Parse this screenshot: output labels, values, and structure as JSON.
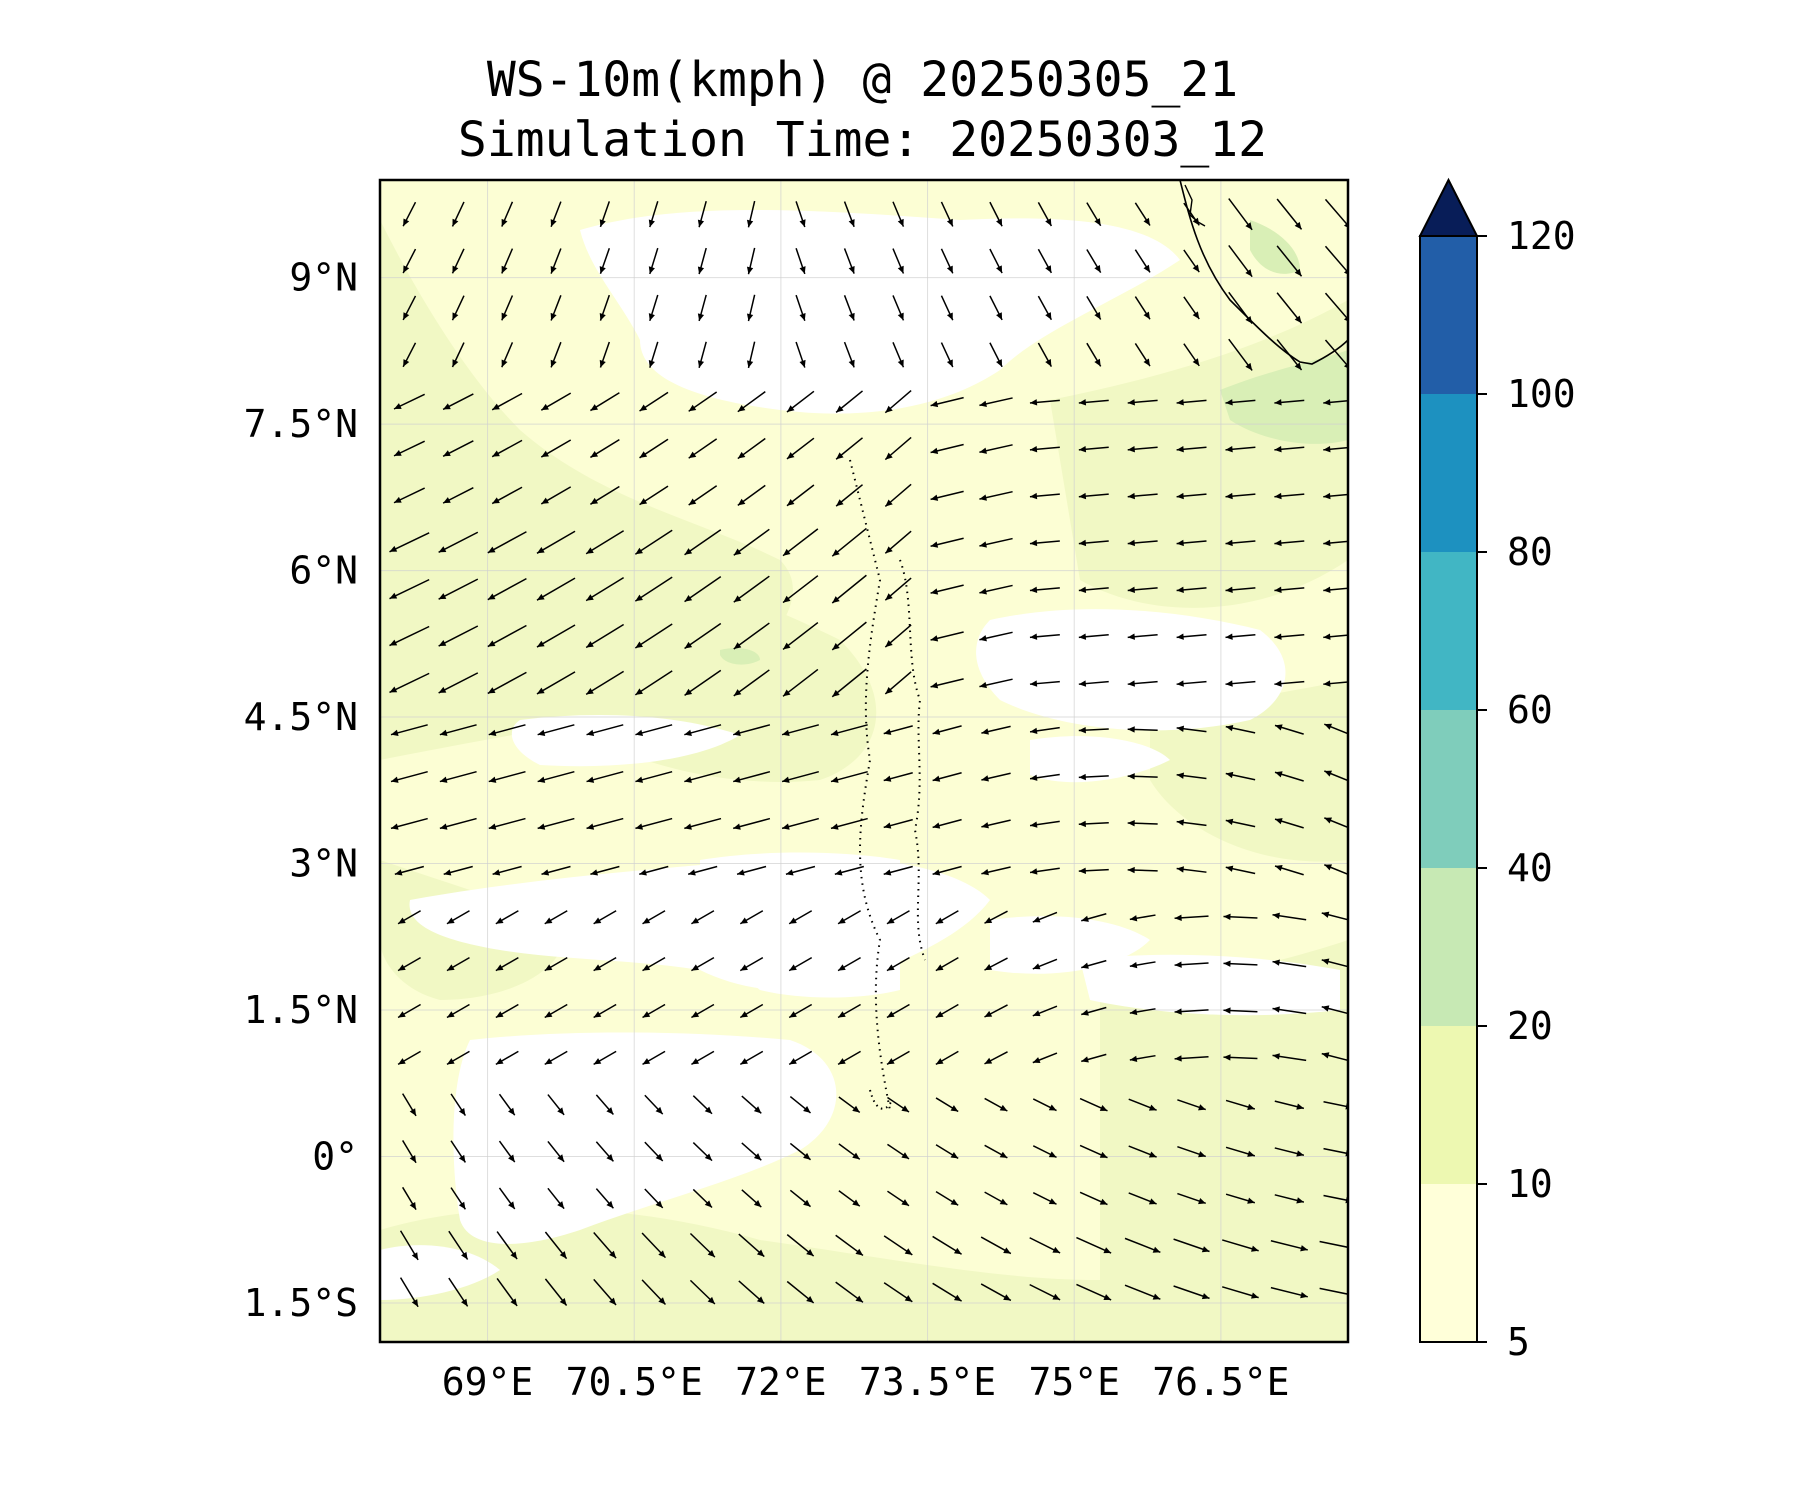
{
  "title": {
    "line1": "WS-10m(kmph) @ 20250305_21",
    "line2": "Simulation Time: 20250303_12"
  },
  "map": {
    "lon_range": [
      67.9,
      77.8
    ],
    "lat_range": [
      -1.9,
      10.0
    ],
    "lon_ticks": [
      {
        "value": 69.0,
        "label": "69°E"
      },
      {
        "value": 70.5,
        "label": "70.5°E"
      },
      {
        "value": 72.0,
        "label": "72°E"
      },
      {
        "value": 73.5,
        "label": "73.5°E"
      },
      {
        "value": 75.0,
        "label": "75°E"
      },
      {
        "value": 76.5,
        "label": "76.5°E"
      }
    ],
    "lat_ticks": [
      {
        "value": 9.0,
        "label": "9°N"
      },
      {
        "value": 7.5,
        "label": "7.5°N"
      },
      {
        "value": 6.0,
        "label": "6°N"
      },
      {
        "value": 4.5,
        "label": "4.5°N"
      },
      {
        "value": 3.0,
        "label": "3°N"
      },
      {
        "value": 1.5,
        "label": "1.5°N"
      },
      {
        "value": 0.0,
        "label": "0°"
      },
      {
        "value": -1.5,
        "label": "1.5°S"
      }
    ],
    "field_colors": {
      "lt5": "#ffffff",
      "5_10": "#fcfed4",
      "10_20": "#f1f8c4",
      "20_40": "#d9efb6"
    }
  },
  "colorbar": {
    "levels": [
      5,
      10,
      20,
      40,
      60,
      80,
      100,
      120
    ],
    "colors": [
      "#ffffd9",
      "#edf8b1",
      "#c7e9b4",
      "#7fcdbb",
      "#41b6c4",
      "#1d91c0",
      "#225ea8",
      "#0c2c84"
    ],
    "extend_color": "#081d58",
    "tick_labels": [
      "5",
      "10",
      "20",
      "40",
      "60",
      "80",
      "100",
      "120"
    ]
  }
}
